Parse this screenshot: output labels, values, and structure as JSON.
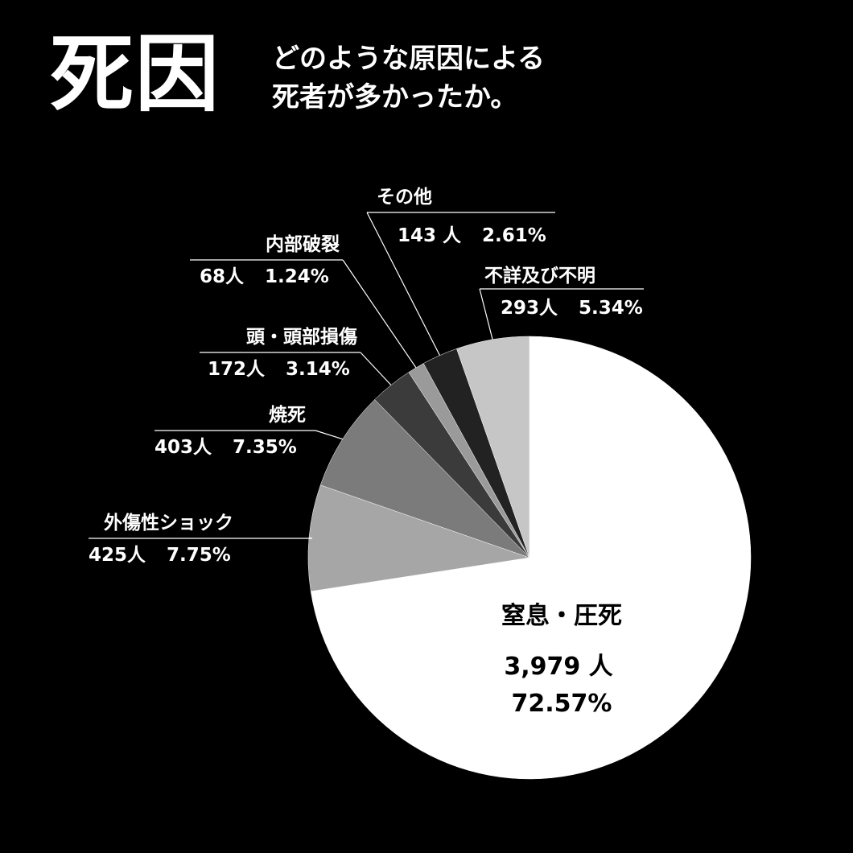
{
  "header": {
    "title": "死因",
    "subtitle_line1": "どのような原因による",
    "subtitle_line2": "死者が多かったか。"
  },
  "chart_data": {
    "type": "pie",
    "title": "死因",
    "subtitle": "どのような原因による死者が多かったか。",
    "legend": "none",
    "start": "top (12 o'clock), clockwise",
    "slices": [
      {
        "label": "窒息・圧死",
        "count": 3979,
        "count_text": "3,979 人",
        "percent": 72.57,
        "percent_text": "72.57%",
        "color": "#ffffff"
      },
      {
        "label": "外傷性ショック",
        "count": 425,
        "count_text": "425人",
        "percent": 7.75,
        "percent_text": "7.75%",
        "color": "#a6a6a6"
      },
      {
        "label": "焼死",
        "count": 403,
        "count_text": "403人",
        "percent": 7.35,
        "percent_text": "7.35%",
        "color": "#7b7b7b"
      },
      {
        "label": "頭・頭部損傷",
        "count": 172,
        "count_text": "172人",
        "percent": 3.14,
        "percent_text": "3.14%",
        "color": "#3b3b3b"
      },
      {
        "label": "内部破裂",
        "count": 68,
        "count_text": "68人",
        "percent": 1.24,
        "percent_text": "1.24%",
        "color": "#9a9a9a"
      },
      {
        "label": "その他",
        "count": 143,
        "count_text": "143 人",
        "percent": 2.61,
        "percent_text": "2.61%",
        "color": "#222222"
      },
      {
        "label": "不詳及び不明",
        "count": 293,
        "count_text": "293人",
        "percent": 5.34,
        "percent_text": "5.34%",
        "color": "#c6c6c6"
      }
    ]
  }
}
